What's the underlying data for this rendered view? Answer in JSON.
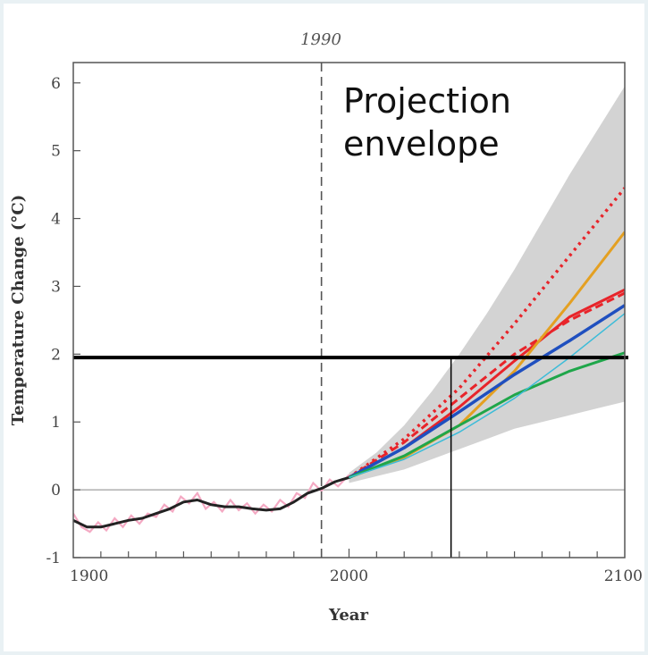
{
  "chart_data": {
    "type": "line",
    "title": "",
    "xlabel": "Year",
    "ylabel": "Temperature Change (°C)",
    "xlim": [
      1900,
      2100
    ],
    "ylim": [
      -1,
      6.3
    ],
    "x_ticks": [
      "1900",
      "2000",
      "2100"
    ],
    "y_ticks": [
      "-1",
      "0",
      "1",
      "2",
      "3",
      "4",
      "5",
      "6"
    ],
    "vline_label": "1990",
    "vline_x": 1990,
    "annotation": "Projection\nenvelope",
    "threshold_y": 1.95,
    "threshold_cross_x": 2037,
    "envelope": {
      "x": [
        2000,
        2010,
        2020,
        2030,
        2040,
        2050,
        2060,
        2070,
        2080,
        2090,
        2100
      ],
      "upper": [
        0.25,
        0.55,
        0.95,
        1.45,
        2.0,
        2.6,
        3.25,
        3.95,
        4.65,
        5.3,
        5.95
      ],
      "lower": [
        0.1,
        0.2,
        0.3,
        0.45,
        0.6,
        0.75,
        0.9,
        1.0,
        1.1,
        1.2,
        1.3
      ]
    },
    "observed": {
      "color": "#222222",
      "x": [
        1900,
        1905,
        1910,
        1915,
        1920,
        1925,
        1930,
        1935,
        1940,
        1945,
        1950,
        1955,
        1960,
        1965,
        1970,
        1975,
        1980,
        1985,
        1990,
        1995,
        2000
      ],
      "y": [
        -0.45,
        -0.55,
        -0.55,
        -0.5,
        -0.45,
        -0.42,
        -0.35,
        -0.28,
        -0.18,
        -0.15,
        -0.22,
        -0.25,
        -0.25,
        -0.28,
        -0.3,
        -0.28,
        -0.18,
        -0.05,
        0.02,
        0.12,
        0.18
      ]
    },
    "observed_noise": {
      "color": "#f4a9c3",
      "x": [
        1900,
        1903,
        1906,
        1909,
        1912,
        1915,
        1918,
        1921,
        1924,
        1927,
        1930,
        1933,
        1936,
        1939,
        1942,
        1945,
        1948,
        1951,
        1954,
        1957,
        1960,
        1963,
        1966,
        1969,
        1972,
        1975,
        1978,
        1981,
        1984,
        1987,
        1990,
        1993,
        1996,
        2000
      ],
      "y": [
        -0.35,
        -0.55,
        -0.62,
        -0.48,
        -0.6,
        -0.42,
        -0.55,
        -0.38,
        -0.5,
        -0.35,
        -0.4,
        -0.22,
        -0.32,
        -0.1,
        -0.2,
        -0.05,
        -0.28,
        -0.18,
        -0.32,
        -0.15,
        -0.3,
        -0.2,
        -0.35,
        -0.22,
        -0.32,
        -0.15,
        -0.25,
        -0.05,
        -0.12,
        0.1,
        -0.02,
        0.15,
        0.05,
        0.22
      ]
    },
    "series": [
      {
        "color": "#e8242a",
        "dash": "3,5",
        "width": 3.5,
        "x": [
          2000,
          2020,
          2040,
          2060,
          2080,
          2100
        ],
        "y": [
          0.18,
          0.75,
          1.5,
          2.45,
          3.45,
          4.45
        ]
      },
      {
        "color": "#e8242a",
        "dash": "9,5",
        "width": 3,
        "x": [
          2000,
          2020,
          2040,
          2060,
          2080,
          2100
        ],
        "y": [
          0.18,
          0.7,
          1.35,
          2.0,
          2.5,
          2.9
        ]
      },
      {
        "color": "#e8242a",
        "dash": "",
        "width": 3,
        "x": [
          2000,
          2020,
          2040,
          2060,
          2080,
          2100
        ],
        "y": [
          0.18,
          0.62,
          1.22,
          1.9,
          2.55,
          2.95
        ]
      },
      {
        "color": "#e4a022",
        "dash": "",
        "width": 3,
        "x": [
          2000,
          2020,
          2040,
          2060,
          2080,
          2100
        ],
        "y": [
          0.18,
          0.48,
          0.95,
          1.75,
          2.75,
          3.8
        ]
      },
      {
        "color": "#1f4fbf",
        "dash": "",
        "width": 3.5,
        "x": [
          2000,
          2020,
          2040,
          2060,
          2080,
          2100
        ],
        "y": [
          0.18,
          0.62,
          1.15,
          1.7,
          2.2,
          2.72
        ]
      },
      {
        "color": "#1fa64a",
        "dash": "",
        "width": 3,
        "x": [
          2000,
          2020,
          2040,
          2060,
          2080,
          2100
        ],
        "y": [
          0.18,
          0.5,
          0.95,
          1.4,
          1.75,
          2.02
        ]
      },
      {
        "color": "#3cbcd8",
        "dash": "",
        "width": 1.5,
        "x": [
          2000,
          2020,
          2040,
          2060,
          2080,
          2100
        ],
        "y": [
          0.18,
          0.45,
          0.85,
          1.35,
          1.95,
          2.6
        ]
      }
    ]
  }
}
